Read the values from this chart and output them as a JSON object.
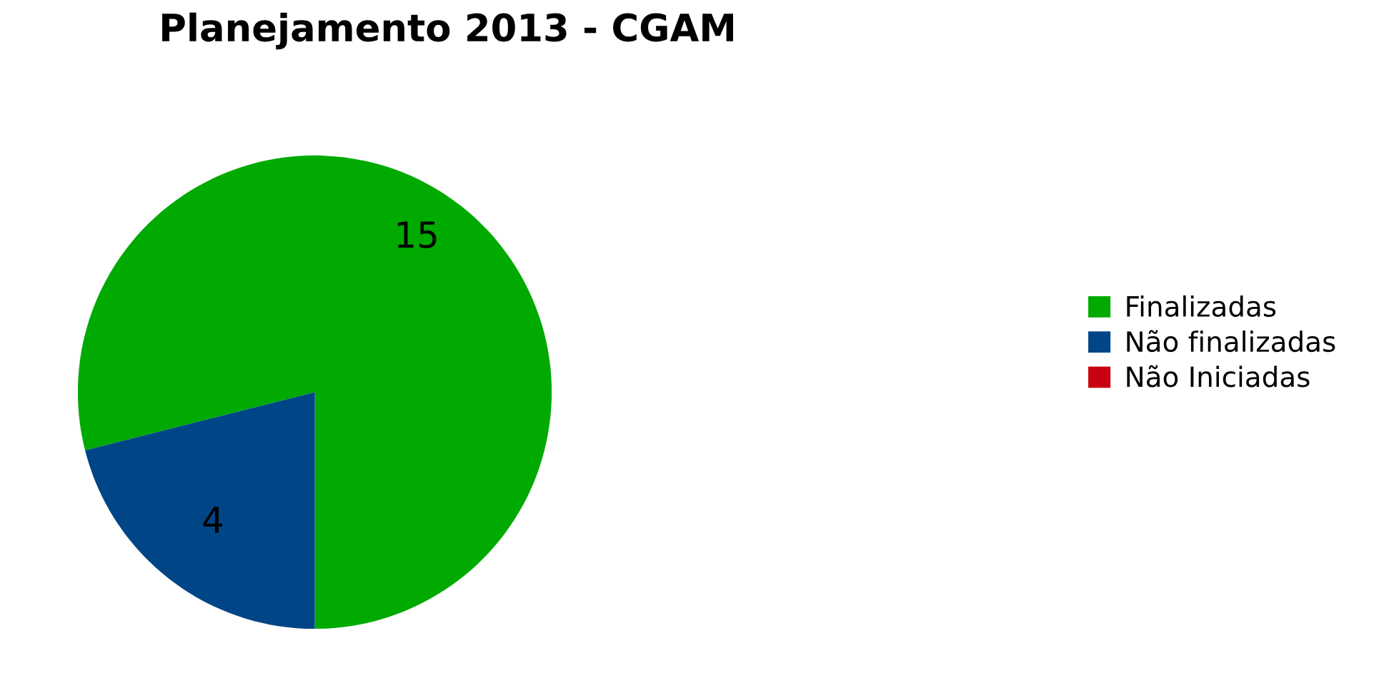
{
  "chart_data": {
    "type": "pie",
    "title": "Planejamento 2013 - CGAM",
    "categories": [
      "Finalizadas",
      "Não finalizadas",
      "Não Iniciadas"
    ],
    "values": [
      15,
      4,
      0
    ],
    "colors": [
      "#00aa00",
      "#004586",
      "#c9000f"
    ],
    "value_labels": [
      "15",
      "4",
      null
    ],
    "legend": "right"
  }
}
